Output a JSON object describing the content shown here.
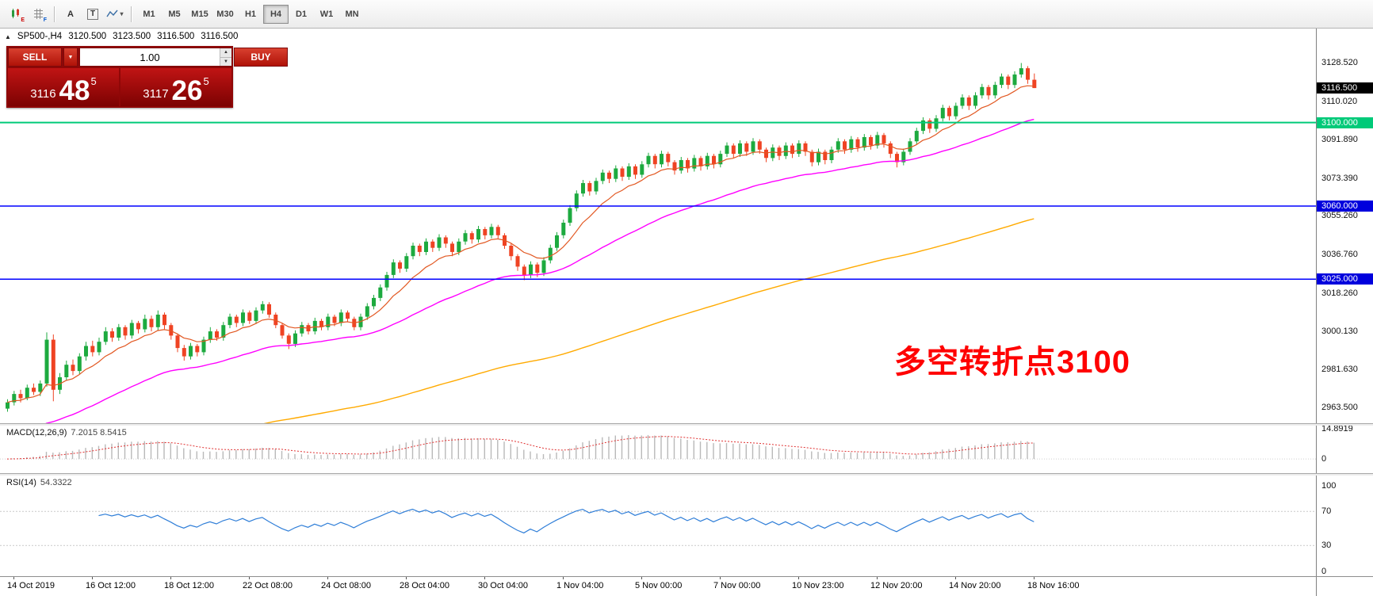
{
  "toolbar": {
    "timeframes": [
      {
        "label": "M1",
        "active": false
      },
      {
        "label": "M5",
        "active": false
      },
      {
        "label": "M15",
        "active": false
      },
      {
        "label": "M30",
        "active": false
      },
      {
        "label": "H1",
        "active": false
      },
      {
        "label": "H4",
        "active": true
      },
      {
        "label": "D1",
        "active": false
      },
      {
        "label": "W1",
        "active": false
      },
      {
        "label": "MN",
        "active": false
      }
    ],
    "badge_e": "E",
    "badge_f": "F",
    "font_tool_label": "A",
    "text_tool_label": "T",
    "dropdown_caret": "▾"
  },
  "header": {
    "marker": "▲",
    "symbol": "SP500-,H4",
    "open": "3120.500",
    "high": "3123.500",
    "low": "3116.500",
    "close": "3116.500"
  },
  "trade_panel": {
    "sell_label": "SELL",
    "buy_label": "BUY",
    "volume": "1.00",
    "dropdown_caret": "▼",
    "spin_up": "▲",
    "spin_down": "▼",
    "sell_price": {
      "prefix": "3116",
      "main": "48",
      "sup": "5"
    },
    "buy_price": {
      "prefix": "3117",
      "main": "26",
      "sup": "5"
    }
  },
  "annotation": {
    "text": "多空转折点3100",
    "color": "#ff0000"
  },
  "macd_pane": {
    "name": "MACD(12,26,9)",
    "values": "7.2015 8.5415",
    "axis_ticks": [
      "14.8919",
      "0"
    ]
  },
  "rsi_pane": {
    "name": "RSI(14)",
    "value": "54.3322",
    "axis_ticks": [
      "100",
      "70",
      "30",
      "0"
    ]
  },
  "price_axis": {
    "ticks": [
      "3128.520",
      "3110.020",
      "3091.890",
      "3073.390",
      "3055.260",
      "3036.760",
      "3018.260",
      "3000.130",
      "2981.630",
      "2963.500"
    ],
    "current": {
      "text": "3116.500",
      "bg": "#000000"
    },
    "levels": [
      {
        "text": "3100.000",
        "bg": "#00ca79"
      },
      {
        "text": "3060.000",
        "bg": "#0000dd"
      },
      {
        "text": "3025.000",
        "bg": "#0000dd"
      }
    ]
  },
  "time_axis": {
    "labels": [
      "14 Oct 2019",
      "16 Oct 12:00",
      "18 Oct 12:00",
      "22 Oct 08:00",
      "24 Oct 08:00",
      "28 Oct 04:00",
      "30 Oct 04:00",
      "1 Nov 04:00",
      "5 Nov 00:00",
      "7 Nov 00:00",
      "10 Nov 23:00",
      "12 Nov 20:00",
      "14 Nov 20:00",
      "18 Nov 16:00"
    ]
  },
  "chart_data": {
    "type": "candlestick",
    "symbol": "SP500-",
    "timeframe": "H4",
    "last_ohlc": {
      "open": 3120.5,
      "high": 3123.5,
      "low": 3116.5,
      "close": 3116.5
    },
    "current_price": 3116.5,
    "y_range": [
      2956,
      3145
    ],
    "colors": {
      "up": "#1daa3f",
      "down": "#ef4323"
    },
    "time_labels_start": 1,
    "time_labels_every": 12,
    "hlines": [
      {
        "price": 3100.0,
        "color": "#00ca79",
        "width": 2,
        "label": "3100.000"
      },
      {
        "price": 3060.0,
        "color": "#0000ff",
        "width": 1.5,
        "label": "3060.000"
      },
      {
        "price": 3025.0,
        "color": "#0000ff",
        "width": 1.5,
        "label": "3025.000"
      }
    ],
    "moving_averages": [
      {
        "name": "fast-ma",
        "period": 10,
        "color": "#e25822",
        "width": 1.2
      },
      {
        "name": "medium-ma",
        "period": 40,
        "color": "#ff00ff",
        "width": 1.4,
        "seed": 2948
      },
      {
        "name": "slow-ma",
        "period": 150,
        "color": "#ffaa00",
        "width": 1.4,
        "seed": 2928
      }
    ],
    "indicators": {
      "macd": {
        "fast": 12,
        "slow": 26,
        "signal": 9,
        "current_macd": 7.2015,
        "current_signal": 8.5415,
        "histogram_color": "#b9b9b9",
        "signal_color": "#e03131",
        "y_range": [
          -7,
          16.5
        ]
      },
      "rsi": {
        "period": 14,
        "current": 54.3322,
        "color": "#2f7ed8",
        "levels": [
          70,
          30
        ],
        "y_range": [
          -6,
          112
        ]
      }
    },
    "ohlc": [
      [
        2963,
        2967.5,
        2961.5,
        2966
      ],
      [
        2966,
        2971.5,
        2964.5,
        2970
      ],
      [
        2970,
        2972,
        2966,
        2968
      ],
      [
        2968,
        2974.5,
        2967,
        2973
      ],
      [
        2973,
        2975,
        2969.5,
        2971
      ],
      [
        2971,
        2976.5,
        2969,
        2975
      ],
      [
        2975,
        2999.5,
        2973.5,
        2996
      ],
      [
        2996,
        2998.5,
        2966.5,
        2972
      ],
      [
        2972,
        2980,
        2970,
        2978
      ],
      [
        2978,
        2986,
        2976.5,
        2984
      ],
      [
        2984,
        2986.5,
        2979,
        2981
      ],
      [
        2981,
        2989.5,
        2979.5,
        2988
      ],
      [
        2988,
        2995,
        2986,
        2993
      ],
      [
        2993,
        2995.5,
        2988,
        2990
      ],
      [
        2990,
        2997,
        2988.5,
        2995
      ],
      [
        2995,
        3002,
        2993.5,
        3000
      ],
      [
        3000,
        3001.5,
        2995,
        2997
      ],
      [
        2997,
        3003.5,
        2995.5,
        3002
      ],
      [
        3002,
        3003,
        2996,
        2998
      ],
      [
        2998,
        3005.5,
        2996.5,
        3004
      ],
      [
        3004,
        3005,
        2999,
        3001
      ],
      [
        3001,
        3008,
        2999.5,
        3006
      ],
      [
        3006,
        3007.5,
        3000,
        3002
      ],
      [
        3002,
        3010,
        3000.5,
        3008
      ],
      [
        3008,
        3009,
        3001,
        3003
      ],
      [
        3003,
        3004,
        2996,
        2998
      ],
      [
        2998,
        2999,
        2990,
        2992
      ],
      [
        2992,
        2993.5,
        2986,
        2988
      ],
      [
        2988,
        2994.5,
        2986.5,
        2993
      ],
      [
        2993,
        2994,
        2988,
        2990
      ],
      [
        2990,
        2997.5,
        2988.5,
        2996
      ],
      [
        2996,
        3002,
        2994.5,
        3000
      ],
      [
        3000,
        3001,
        2995.5,
        2997
      ],
      [
        2997,
        3004.5,
        2995.5,
        3003
      ],
      [
        3003,
        3008.5,
        3001.5,
        3007
      ],
      [
        3007,
        3008,
        3002,
        3004
      ],
      [
        3004,
        3010.5,
        3002.5,
        3009
      ],
      [
        3009,
        3010,
        3003.5,
        3005
      ],
      [
        3005,
        3011.5,
        3003.5,
        3010
      ],
      [
        3010,
        3014.5,
        3008.5,
        3013
      ],
      [
        3013,
        3014,
        3006.5,
        3008
      ],
      [
        3008,
        3009,
        3001.5,
        3003
      ],
      [
        3003,
        3004,
        2996.5,
        2998
      ],
      [
        2998,
        2999,
        2991.5,
        2994
      ],
      [
        2994,
        3000.5,
        2992.5,
        2999
      ],
      [
        2999,
        3004.5,
        2997.5,
        3003
      ],
      [
        3003,
        3004,
        2998.5,
        3000
      ],
      [
        3000,
        3006.5,
        2998.5,
        3005
      ],
      [
        3005,
        3006,
        3000.5,
        3002
      ],
      [
        3002,
        3008.5,
        3000.5,
        3007
      ],
      [
        3007,
        3008,
        3002.5,
        3004
      ],
      [
        3004,
        3010.5,
        3002.5,
        3009
      ],
      [
        3009,
        3010,
        3004.5,
        3006
      ],
      [
        3006,
        3007,
        3000.5,
        3002
      ],
      [
        3002,
        3008.5,
        3000.5,
        3007
      ],
      [
        3007,
        3013.5,
        3005.5,
        3012
      ],
      [
        3012,
        3017.5,
        3010.5,
        3016
      ],
      [
        3016,
        3022.5,
        3014.5,
        3021
      ],
      [
        3021,
        3028.5,
        3019.5,
        3027
      ],
      [
        3027,
        3034.5,
        3025.5,
        3033
      ],
      [
        3033,
        3034,
        3028,
        3030
      ],
      [
        3030,
        3037.5,
        3028.5,
        3036
      ],
      [
        3036,
        3042.5,
        3034.5,
        3041
      ],
      [
        3041,
        3042,
        3036,
        3038
      ],
      [
        3038,
        3044.5,
        3036.5,
        3043
      ],
      [
        3043,
        3044,
        3038,
        3040
      ],
      [
        3040,
        3046.5,
        3038.5,
        3045
      ],
      [
        3045,
        3046,
        3040,
        3042
      ],
      [
        3042,
        3043,
        3036,
        3038
      ],
      [
        3038,
        3044.5,
        3036.5,
        3043
      ],
      [
        3043,
        3048.5,
        3041.5,
        3047
      ],
      [
        3047,
        3048,
        3042,
        3044
      ],
      [
        3044,
        3050.5,
        3042.5,
        3049
      ],
      [
        3049,
        3050,
        3044,
        3046
      ],
      [
        3046,
        3051.5,
        3044.5,
        3050
      ],
      [
        3050,
        3051,
        3044.5,
        3046
      ],
      [
        3046,
        3047,
        3039.5,
        3041
      ],
      [
        3041,
        3042,
        3034,
        3036
      ],
      [
        3036,
        3037,
        3029,
        3031
      ],
      [
        3031,
        3032,
        3024.5,
        3027
      ],
      [
        3027,
        3033.5,
        3025.5,
        3032
      ],
      [
        3032,
        3033,
        3026,
        3028
      ],
      [
        3028,
        3035.5,
        3026.5,
        3034
      ],
      [
        3034,
        3041.5,
        3032.5,
        3040
      ],
      [
        3040,
        3047.5,
        3038.5,
        3046
      ],
      [
        3046,
        3053.5,
        3044.5,
        3052
      ],
      [
        3052,
        3060.5,
        3050.5,
        3059
      ],
      [
        3059,
        3067.5,
        3057.5,
        3066
      ],
      [
        3066,
        3072.5,
        3064.5,
        3071
      ],
      [
        3071,
        3072,
        3065,
        3067
      ],
      [
        3067,
        3073.5,
        3065.5,
        3072
      ],
      [
        3072,
        3077.5,
        3070.5,
        3076
      ],
      [
        3076,
        3077,
        3071,
        3073
      ],
      [
        3073,
        3079.5,
        3071.5,
        3078
      ],
      [
        3078,
        3079,
        3072,
        3074
      ],
      [
        3074,
        3080.5,
        3072.5,
        3079
      ],
      [
        3079,
        3080,
        3073,
        3075
      ],
      [
        3075,
        3081.5,
        3073.5,
        3080
      ],
      [
        3080,
        3085.5,
        3078.5,
        3084
      ],
      [
        3084,
        3085,
        3078,
        3080
      ],
      [
        3080,
        3086.5,
        3078.5,
        3085
      ],
      [
        3085,
        3086,
        3079,
        3081
      ],
      [
        3081,
        3082,
        3075,
        3077
      ],
      [
        3077,
        3083.5,
        3075.5,
        3082
      ],
      [
        3082,
        3083,
        3076,
        3078
      ],
      [
        3078,
        3084.5,
        3076.5,
        3083
      ],
      [
        3083,
        3084,
        3077,
        3079
      ],
      [
        3079,
        3085.5,
        3077.5,
        3084
      ],
      [
        3084,
        3085,
        3078,
        3080
      ],
      [
        3080,
        3086.5,
        3078.5,
        3085
      ],
      [
        3085,
        3090.5,
        3083.5,
        3089
      ],
      [
        3089,
        3090,
        3083,
        3085
      ],
      [
        3085,
        3091.5,
        3083.5,
        3090
      ],
      [
        3090,
        3091,
        3084,
        3086
      ],
      [
        3086,
        3092.5,
        3084.5,
        3091
      ],
      [
        3091,
        3092,
        3085,
        3087
      ],
      [
        3087,
        3088,
        3081,
        3083
      ],
      [
        3083,
        3089.5,
        3081.5,
        3088
      ],
      [
        3088,
        3089,
        3082,
        3084
      ],
      [
        3084,
        3090.5,
        3082.5,
        3089
      ],
      [
        3089,
        3090,
        3083,
        3085
      ],
      [
        3085,
        3091.5,
        3083.5,
        3090
      ],
      [
        3090,
        3091,
        3084,
        3086
      ],
      [
        3086,
        3087,
        3079,
        3081
      ],
      [
        3081,
        3087.5,
        3079.5,
        3086
      ],
      [
        3086,
        3087,
        3080,
        3082
      ],
      [
        3082,
        3088.5,
        3080.5,
        3087
      ],
      [
        3087,
        3092.5,
        3085.5,
        3091
      ],
      [
        3091,
        3092,
        3085,
        3087
      ],
      [
        3087,
        3093.5,
        3085.5,
        3092
      ],
      [
        3092,
        3093,
        3086,
        3088
      ],
      [
        3088,
        3094.5,
        3086.5,
        3093
      ],
      [
        3093,
        3094,
        3087,
        3089
      ],
      [
        3089,
        3095.5,
        3087.5,
        3094
      ],
      [
        3094,
        3095,
        3088,
        3090
      ],
      [
        3090,
        3091,
        3083,
        3085
      ],
      [
        3085,
        3086,
        3078.5,
        3081
      ],
      [
        3081,
        3087.5,
        3079.5,
        3086
      ],
      [
        3086,
        3092.5,
        3084.5,
        3091
      ],
      [
        3091,
        3097.5,
        3089.5,
        3096
      ],
      [
        3096,
        3102.5,
        3094.5,
        3101
      ],
      [
        3101,
        3102,
        3095,
        3097
      ],
      [
        3097,
        3103.5,
        3095.5,
        3102
      ],
      [
        3102,
        3108.5,
        3100.5,
        3107
      ],
      [
        3107,
        3108,
        3101,
        3103
      ],
      [
        3103,
        3109.5,
        3101.5,
        3108
      ],
      [
        3108,
        3113.5,
        3106.5,
        3112
      ],
      [
        3112,
        3113,
        3106,
        3108
      ],
      [
        3108,
        3114.5,
        3106.5,
        3113
      ],
      [
        3113,
        3118.5,
        3111.5,
        3117
      ],
      [
        3117,
        3118,
        3111,
        3113
      ],
      [
        3113,
        3119.5,
        3111.5,
        3118
      ],
      [
        3118,
        3123.5,
        3116.5,
        3122
      ],
      [
        3122,
        3123,
        3116,
        3118
      ],
      [
        3118,
        3124.5,
        3116.5,
        3123
      ],
      [
        3123,
        3128.5,
        3121.5,
        3126
      ],
      [
        3126,
        3127,
        3118.5,
        3120.5
      ],
      [
        3120.5,
        3123.5,
        3116.5,
        3116.5
      ]
    ]
  }
}
